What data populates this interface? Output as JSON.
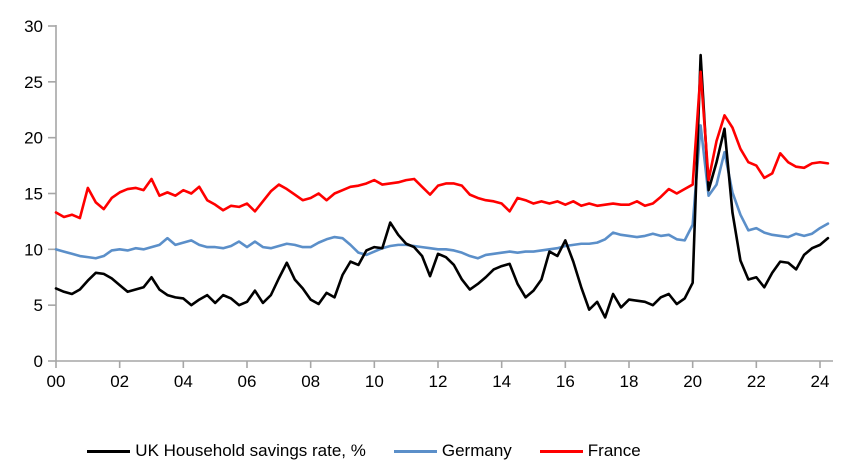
{
  "chart_data": {
    "type": "line",
    "x_start_year": 2000,
    "x_step_years": 0.25,
    "x_axis": {
      "tick_years": [
        0,
        2,
        4,
        6,
        8,
        10,
        12,
        14,
        16,
        18,
        20,
        22,
        24
      ],
      "tick_labels": [
        "00",
        "02",
        "04",
        "06",
        "08",
        "10",
        "12",
        "14",
        "16",
        "18",
        "20",
        "22",
        "24"
      ]
    },
    "y_axis": {
      "min": 0,
      "max": 30,
      "tick_step": 5,
      "tick_labels": [
        "0",
        "5",
        "10",
        "15",
        "20",
        "25",
        "30"
      ]
    },
    "grid": false,
    "legend_position": "bottom",
    "series": [
      {
        "name": "UK Household savings rate, %",
        "color": "#000000",
        "values": [
          6.5,
          6.2,
          6.0,
          6.4,
          7.2,
          7.9,
          7.8,
          7.4,
          6.8,
          6.2,
          6.4,
          6.6,
          7.5,
          6.4,
          5.9,
          5.7,
          5.6,
          5.0,
          5.5,
          5.9,
          5.2,
          5.9,
          5.6,
          5.0,
          5.3,
          6.3,
          5.2,
          5.9,
          7.4,
          8.8,
          7.3,
          6.5,
          5.5,
          5.1,
          6.1,
          5.7,
          7.7,
          8.9,
          8.6,
          9.9,
          10.2,
          10.1,
          12.4,
          11.3,
          10.5,
          10.2,
          9.4,
          7.6,
          9.6,
          9.3,
          8.6,
          7.3,
          6.4,
          6.9,
          7.5,
          8.2,
          8.5,
          8.7,
          6.9,
          5.7,
          6.3,
          7.3,
          9.8,
          9.4,
          10.8,
          8.9,
          6.6,
          4.6,
          5.3,
          3.9,
          6.0,
          4.8,
          5.5,
          5.4,
          5.3,
          5.0,
          5.7,
          6.0,
          5.1,
          5.6,
          7.0,
          27.4,
          15.3,
          17.8,
          20.8,
          13.3,
          9.0,
          7.3,
          7.5,
          6.6,
          7.9,
          8.9,
          8.8,
          8.2,
          9.5,
          10.1,
          10.4,
          11.0
        ]
      },
      {
        "name": "Germany",
        "color": "#5B8FC9",
        "values": [
          10.0,
          9.8,
          9.6,
          9.4,
          9.3,
          9.2,
          9.4,
          9.9,
          10.0,
          9.9,
          10.1,
          10.0,
          10.2,
          10.4,
          11.0,
          10.4,
          10.6,
          10.8,
          10.4,
          10.2,
          10.2,
          10.1,
          10.3,
          10.7,
          10.2,
          10.7,
          10.2,
          10.1,
          10.3,
          10.5,
          10.4,
          10.2,
          10.2,
          10.6,
          10.9,
          11.1,
          11.0,
          10.4,
          9.7,
          9.5,
          9.8,
          10.1,
          10.3,
          10.4,
          10.4,
          10.3,
          10.2,
          10.1,
          10.0,
          10.0,
          9.9,
          9.7,
          9.4,
          9.2,
          9.5,
          9.6,
          9.7,
          9.8,
          9.7,
          9.8,
          9.8,
          9.9,
          10.0,
          10.1,
          10.3,
          10.4,
          10.5,
          10.5,
          10.6,
          10.9,
          11.5,
          11.3,
          11.2,
          11.1,
          11.2,
          11.4,
          11.2,
          11.3,
          10.9,
          10.8,
          12.2,
          21.1,
          14.8,
          15.8,
          18.7,
          15.1,
          13.1,
          11.7,
          11.9,
          11.5,
          11.3,
          11.2,
          11.1,
          11.4,
          11.2,
          11.4,
          11.9,
          12.3
        ]
      },
      {
        "name": "France",
        "color": "#FF0000",
        "values": [
          13.3,
          12.9,
          13.1,
          12.8,
          15.5,
          14.2,
          13.6,
          14.6,
          15.1,
          15.4,
          15.5,
          15.3,
          16.3,
          14.8,
          15.1,
          14.8,
          15.3,
          15.0,
          15.6,
          14.4,
          14.0,
          13.5,
          13.9,
          13.8,
          14.1,
          13.4,
          14.3,
          15.2,
          15.8,
          15.4,
          14.9,
          14.4,
          14.6,
          15.0,
          14.4,
          15.0,
          15.3,
          15.6,
          15.7,
          15.9,
          16.2,
          15.8,
          15.9,
          16.0,
          16.2,
          16.3,
          15.6,
          14.9,
          15.7,
          15.9,
          15.9,
          15.7,
          14.9,
          14.6,
          14.4,
          14.3,
          14.1,
          13.4,
          14.6,
          14.4,
          14.1,
          14.3,
          14.1,
          14.3,
          14.0,
          14.3,
          13.9,
          14.1,
          13.9,
          14.0,
          14.1,
          14.0,
          14.0,
          14.3,
          13.9,
          14.1,
          14.7,
          15.4,
          15.0,
          15.4,
          15.8,
          25.9,
          16.2,
          19.7,
          22.0,
          20.9,
          19.0,
          17.8,
          17.5,
          16.4,
          16.8,
          18.6,
          17.8,
          17.4,
          17.3,
          17.7,
          17.8,
          17.7
        ]
      }
    ]
  },
  "colors": {
    "axis": "#A6A6A6",
    "background": "#FFFFFF"
  }
}
